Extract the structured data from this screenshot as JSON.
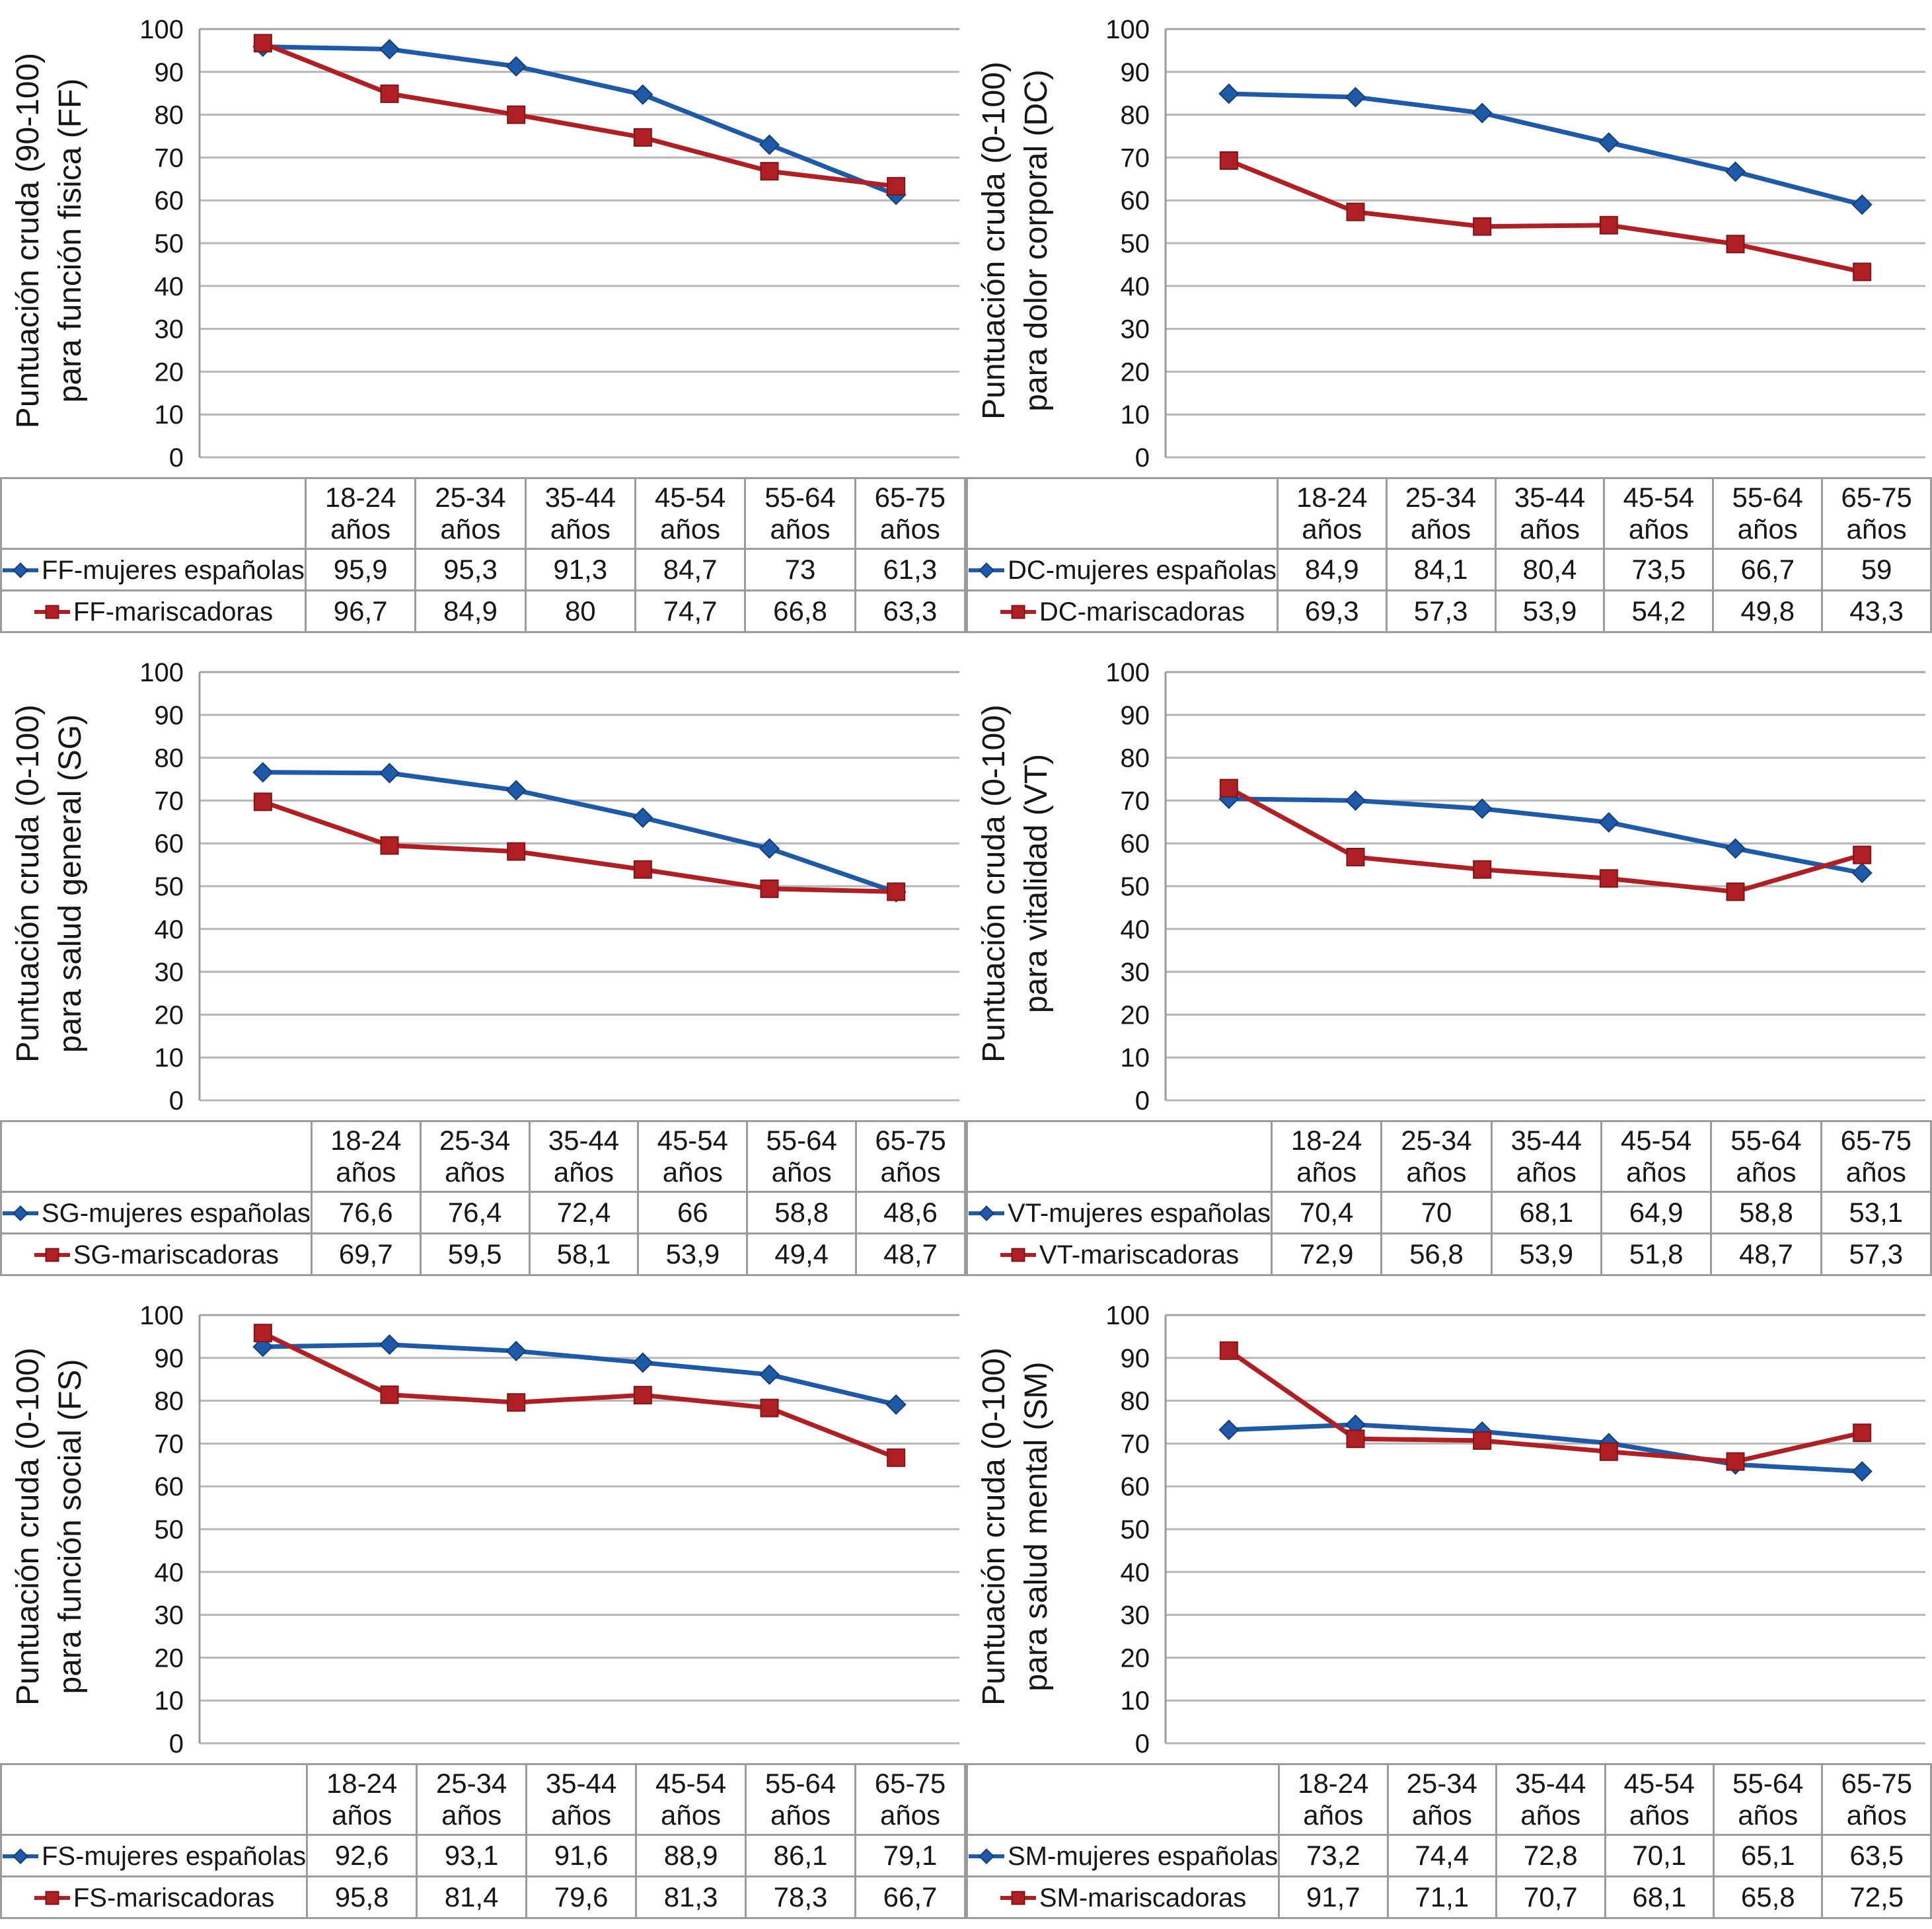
{
  "colors": {
    "blue": "#1E5AA8",
    "blue_dark": "#143E78",
    "red": "#B01F24",
    "red_dark": "#7E1518",
    "grid": "#b5b5b5",
    "grid_top": "#a3a3a3",
    "axis": "#9a9a9a",
    "table_border": "#9b9b9b",
    "text": "#141414"
  },
  "categories": [
    "18-24 años",
    "25-34 años",
    "35-44 años",
    "45-54 años",
    "55-64 años",
    "65-75 años"
  ],
  "chart_data": [
    {
      "type": "line",
      "code": "FF",
      "ylabel": [
        "Puntuación cruda (90-100)",
        "para función fisica (FF)"
      ],
      "xlabel": "",
      "ylim": [
        0,
        100
      ],
      "ytick_step": 10,
      "grid": true,
      "legend_position": "table-left",
      "categories": [
        "18-24 años",
        "25-34 años",
        "35-44 años",
        "45-54 años",
        "55-64 años",
        "65-75 años"
      ],
      "series": [
        {
          "name": "FF-mujeres españolas",
          "color_key": "blue",
          "marker": "diamond",
          "values": [
            95.9,
            95.3,
            91.3,
            84.7,
            73,
            61.3
          ],
          "display": [
            "95,9",
            "95,3",
            "91,3",
            "84,7",
            "73",
            "61,3"
          ]
        },
        {
          "name": "FF-mariscadoras",
          "color_key": "red",
          "marker": "square",
          "values": [
            96.7,
            84.9,
            80,
            74.7,
            66.8,
            63.3
          ],
          "display": [
            "96,7",
            "84,9",
            "80",
            "74,7",
            "66,8",
            "63,3"
          ]
        }
      ]
    },
    {
      "type": "line",
      "code": "DC",
      "ylabel": [
        "Puntuación cruda (0-100)",
        "para dolor corporal (DC)"
      ],
      "xlabel": "",
      "ylim": [
        0,
        100
      ],
      "ytick_step": 10,
      "grid": true,
      "legend_position": "table-left",
      "categories": [
        "18-24 años",
        "25-34 años",
        "35-44 años",
        "45-54 años",
        "55-64 años",
        "65-75 años"
      ],
      "series": [
        {
          "name": "DC-mujeres españolas",
          "color_key": "blue",
          "marker": "diamond",
          "values": [
            84.9,
            84.1,
            80.4,
            73.5,
            66.7,
            59
          ],
          "display": [
            "84,9",
            "84,1",
            "80,4",
            "73,5",
            "66,7",
            "59"
          ]
        },
        {
          "name": "DC-mariscadoras",
          "color_key": "red",
          "marker": "square",
          "values": [
            69.3,
            57.3,
            53.9,
            54.2,
            49.8,
            43.3
          ],
          "display": [
            "69,3",
            "57,3",
            "53,9",
            "54,2",
            "49,8",
            "43,3"
          ]
        }
      ]
    },
    {
      "type": "line",
      "code": "SG",
      "ylabel": [
        "Puntuación cruda (0-100)",
        "para salud general (SG)"
      ],
      "xlabel": "",
      "ylim": [
        0,
        100
      ],
      "ytick_step": 10,
      "grid": true,
      "legend_position": "table-left",
      "categories": [
        "18-24 años",
        "25-34 años",
        "35-44 años",
        "45-54 años",
        "55-64 años",
        "65-75 años"
      ],
      "series": [
        {
          "name": "SG-mujeres españolas",
          "color_key": "blue",
          "marker": "diamond",
          "values": [
            76.6,
            76.4,
            72.4,
            66,
            58.8,
            48.6
          ],
          "display": [
            "76,6",
            "76,4",
            "72,4",
            "66",
            "58,8",
            "48,6"
          ]
        },
        {
          "name": "SG-mariscadoras",
          "color_key": "red",
          "marker": "square",
          "values": [
            69.7,
            59.5,
            58.1,
            53.9,
            49.4,
            48.7
          ],
          "display": [
            "69,7",
            "59,5",
            "58,1",
            "53,9",
            "49,4",
            "48,7"
          ]
        }
      ]
    },
    {
      "type": "line",
      "code": "VT",
      "ylabel": [
        "Puntuación cruda (0-100)",
        "para vitalidad (VT)"
      ],
      "xlabel": "",
      "ylim": [
        0,
        100
      ],
      "ytick_step": 10,
      "grid": true,
      "legend_position": "table-left",
      "categories": [
        "18-24 años",
        "25-34 años",
        "35-44 años",
        "45-54 años",
        "55-64 años",
        "65-75 años"
      ],
      "series": [
        {
          "name": "VT-mujeres españolas",
          "color_key": "blue",
          "marker": "diamond",
          "values": [
            70.4,
            70,
            68.1,
            64.9,
            58.8,
            53.1
          ],
          "display": [
            "70,4",
            "70",
            "68,1",
            "64,9",
            "58,8",
            "53,1"
          ]
        },
        {
          "name": "VT-mariscadoras",
          "color_key": "red",
          "marker": "square",
          "values": [
            72.9,
            56.8,
            53.9,
            51.8,
            48.7,
            57.3
          ],
          "display": [
            "72,9",
            "56,8",
            "53,9",
            "51,8",
            "48,7",
            "57,3"
          ]
        }
      ]
    },
    {
      "type": "line",
      "code": "FS",
      "ylabel": [
        "Puntuación cruda (0-100)",
        "para función social (FS)"
      ],
      "xlabel": "",
      "ylim": [
        0,
        100
      ],
      "ytick_step": 10,
      "grid": true,
      "legend_position": "table-left",
      "categories": [
        "18-24 años",
        "25-34 años",
        "35-44 años",
        "45-54 años",
        "55-64 años",
        "65-75 años"
      ],
      "series": [
        {
          "name": "FS-mujeres españolas",
          "color_key": "blue",
          "marker": "diamond",
          "values": [
            92.6,
            93.1,
            91.6,
            88.9,
            86.1,
            79.1
          ],
          "display": [
            "92,6",
            "93,1",
            "91,6",
            "88,9",
            "86,1",
            "79,1"
          ]
        },
        {
          "name": "FS-mariscadoras",
          "color_key": "red",
          "marker": "square",
          "values": [
            95.8,
            81.4,
            79.6,
            81.3,
            78.3,
            66.7
          ],
          "display": [
            "95,8",
            "81,4",
            "79,6",
            "81,3",
            "78,3",
            "66,7"
          ]
        }
      ]
    },
    {
      "type": "line",
      "code": "SM",
      "ylabel": [
        "Puntuación cruda (0-100)",
        "para salud mental (SM)"
      ],
      "xlabel": "",
      "ylim": [
        0,
        100
      ],
      "ytick_step": 10,
      "grid": true,
      "legend_position": "table-left",
      "categories": [
        "18-24 años",
        "25-34 años",
        "35-44 años",
        "45-54 años",
        "55-64 años",
        "65-75 años"
      ],
      "series": [
        {
          "name": "SM-mujeres españolas",
          "color_key": "blue",
          "marker": "diamond",
          "values": [
            73.2,
            74.4,
            72.8,
            70.1,
            65.1,
            63.5
          ],
          "display": [
            "73,2",
            "74,4",
            "72,8",
            "70,1",
            "65,1",
            "63,5"
          ]
        },
        {
          "name": "SM-mariscadoras",
          "color_key": "red",
          "marker": "square",
          "values": [
            91.7,
            71.1,
            70.7,
            68.1,
            65.8,
            72.5
          ],
          "display": [
            "91,7",
            "71,1",
            "70,7",
            "68,1",
            "65,8",
            "72,5"
          ]
        }
      ]
    }
  ]
}
